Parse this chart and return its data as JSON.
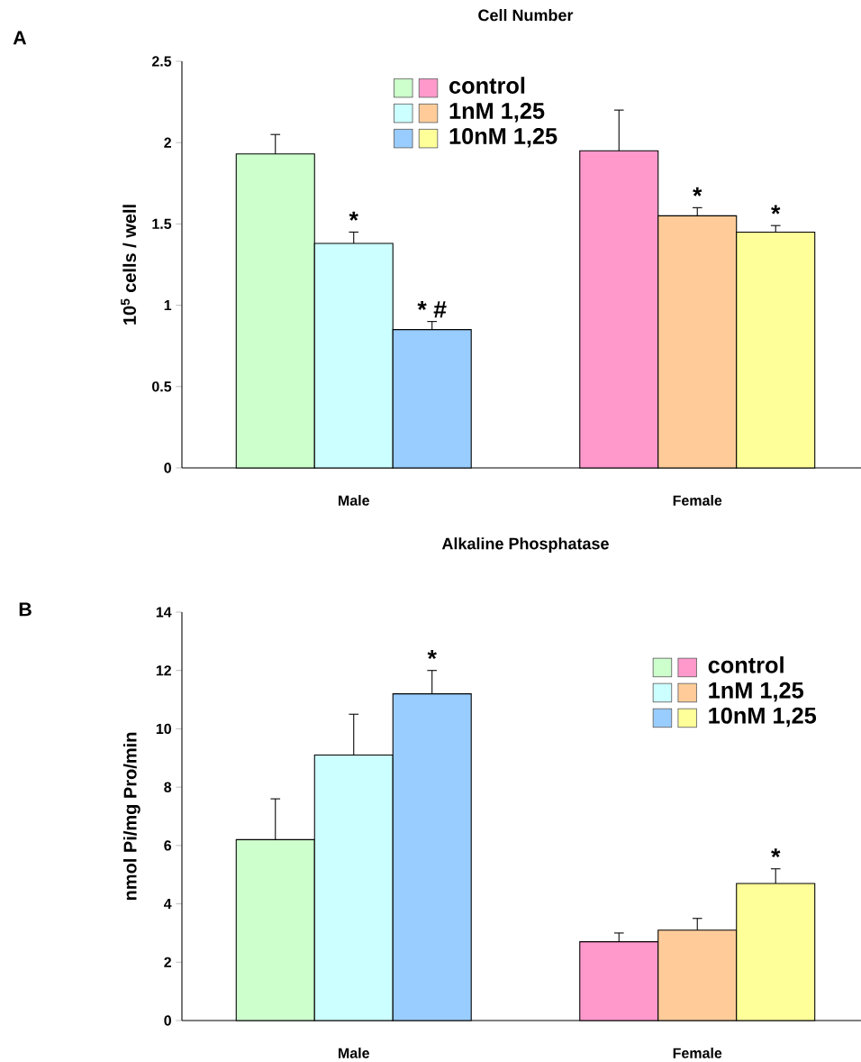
{
  "chart_data": [
    {
      "type": "bar",
      "title": "Cell Number",
      "ylabel": "10$^{5}$ cells / well",
      "categories": [
        "Male",
        "Female"
      ],
      "series": [
        {
          "name": "control",
          "colors": [
            "#ccffcc",
            "#ff99cc"
          ],
          "values": [
            1.93,
            1.95
          ],
          "errors": [
            [
              1.93,
              2.05
            ],
            [
              1.95,
              2.2
            ]
          ]
        },
        {
          "name": "1nM 1,25",
          "colors": [
            "#ccffff",
            "#ffcc99"
          ],
          "values": [
            1.38,
            1.55
          ],
          "errors": [
            [
              1.38,
              1.45
            ],
            [
              1.55,
              1.6
            ]
          ],
          "value_labels": [
            "*",
            "*"
          ]
        },
        {
          "name": "10nM 1,25",
          "colors": [
            "#99ccff",
            "#ffff99"
          ],
          "values": [
            0.85,
            1.45
          ],
          "errors": [
            [
              0.85,
              0.9
            ],
            [
              1.45,
              1.49
            ]
          ],
          "value_labels": [
            "* #",
            "*"
          ]
        }
      ],
      "ylim": [
        0,
        2.5
      ],
      "yticks": [
        0,
        0.5,
        1,
        1.5,
        2,
        2.5
      ],
      "legend": "top",
      "annotations": [
        "A"
      ]
    },
    {
      "type": "bar",
      "title": "Alkaline Phosphatase",
      "ylabel": "nmol Pi/mg Pro/min",
      "categories": [
        "Male",
        "Female"
      ],
      "series": [
        {
          "name": "control",
          "colors": [
            "#ccffcc",
            "#ff99cc"
          ],
          "values": [
            6.2,
            2.7
          ],
          "errors": [
            [
              6.2,
              7.6
            ],
            [
              2.7,
              3.0
            ]
          ]
        },
        {
          "name": "1nM 1,25",
          "colors": [
            "#ccffff",
            "#ffcc99"
          ],
          "values": [
            9.1,
            3.1
          ],
          "errors": [
            [
              9.1,
              10.5
            ],
            [
              3.1,
              3.5
            ]
          ]
        },
        {
          "name": "10nM 1,25",
          "colors": [
            "#99ccff",
            "#ffff99"
          ],
          "values": [
            11.2,
            4.7
          ],
          "errors": [
            [
              11.2,
              12.0
            ],
            [
              4.7,
              5.2
            ]
          ],
          "value_labels": [
            "*",
            "*"
          ]
        }
      ],
      "ylim": [
        0,
        14
      ],
      "yticks": [
        0,
        2,
        4,
        6,
        8,
        10,
        12,
        14
      ],
      "legend": "top right",
      "annotations": [
        "B"
      ]
    }
  ]
}
